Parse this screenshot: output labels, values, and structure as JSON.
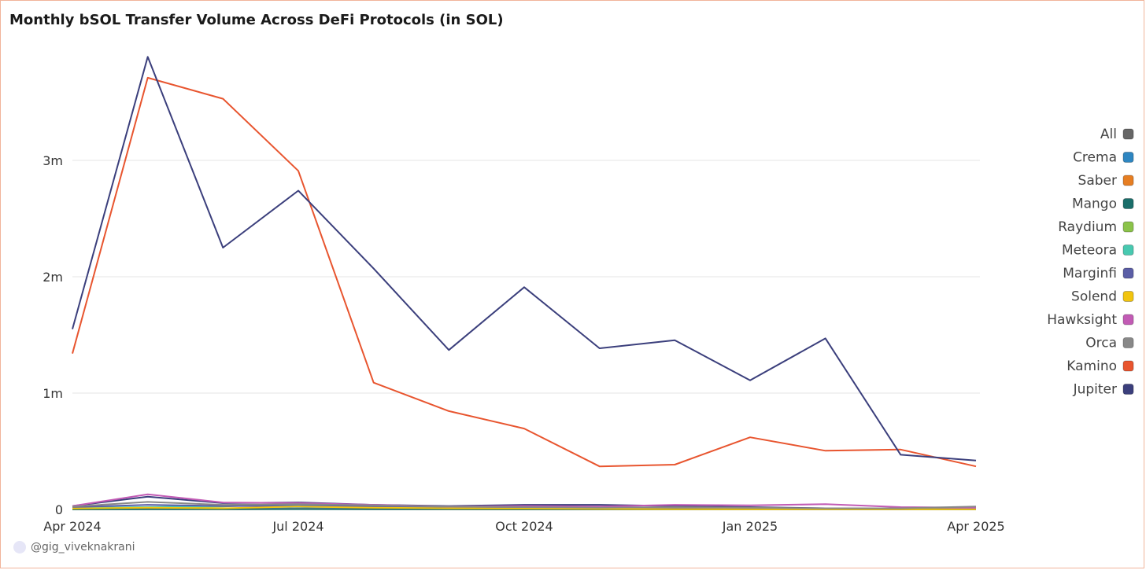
{
  "chart_data": {
    "type": "line",
    "title": "Monthly bSOL Transfer Volume Across DeFi Protocols (in SOL)",
    "x": [
      "2024-04",
      "2024-05",
      "2024-06",
      "2024-07",
      "2024-08",
      "2024-09",
      "2024-10",
      "2024-11",
      "2024-12",
      "2025-01",
      "2025-02",
      "2025-03",
      "2025-04"
    ],
    "x_ticks": [
      {
        "x": "2024-04",
        "label": "Apr 2024"
      },
      {
        "x": "2024-07",
        "label": "Jul 2024"
      },
      {
        "x": "2024-10",
        "label": "Oct 2024"
      },
      {
        "x": "2025-01",
        "label": "Jan 2025"
      },
      {
        "x": "2025-04",
        "label": "Apr 2025"
      }
    ],
    "y_ticks": [
      {
        "value": 0,
        "label": "0"
      },
      {
        "value": 1000000,
        "label": "1m"
      },
      {
        "value": 2000000,
        "label": "2m"
      },
      {
        "value": 3000000,
        "label": "3m"
      }
    ],
    "ylim": [
      0,
      4000000
    ],
    "grid": true,
    "legend_position": "right",
    "series": [
      {
        "name": "All",
        "color": "#666666",
        "values": [
          null,
          null,
          null,
          null,
          null,
          null,
          null,
          null,
          null,
          null,
          null,
          null,
          null
        ]
      },
      {
        "name": "Crema",
        "color": "#2e86c1",
        "values": [
          5000,
          8000,
          6000,
          10000,
          8000,
          5000,
          4000,
          3000,
          2000,
          1000,
          1000,
          1000,
          1000
        ]
      },
      {
        "name": "Saber",
        "color": "#e67e22",
        "values": [
          2000,
          3000,
          2000,
          4000,
          3000,
          2000,
          2000,
          2000,
          2000,
          1000,
          1000,
          1000,
          1000
        ]
      },
      {
        "name": "Mango",
        "color": "#1a6e6a",
        "values": [
          1000,
          2000,
          2000,
          3000,
          2000,
          2000,
          1000,
          1000,
          1000,
          1000,
          1000,
          1000,
          1000
        ]
      },
      {
        "name": "Raydium",
        "color": "#8bc34a",
        "values": [
          10000,
          20000,
          25000,
          50000,
          30000,
          15000,
          10000,
          10000,
          8000,
          6000,
          5000,
          5000,
          5000
        ]
      },
      {
        "name": "Meteora",
        "color": "#48c9b0",
        "values": [
          15000,
          20000,
          30000,
          40000,
          35000,
          20000,
          15000,
          20000,
          15000,
          10000,
          8000,
          8000,
          10000
        ]
      },
      {
        "name": "Marginfi",
        "color": "#5b5ea6",
        "values": [
          20000,
          40000,
          30000,
          30000,
          25000,
          20000,
          20000,
          20000,
          15000,
          10000,
          8000,
          8000,
          8000
        ]
      },
      {
        "name": "Solend",
        "color": "#f1c40f",
        "values": [
          8000,
          15000,
          10000,
          25000,
          15000,
          10000,
          8000,
          5000,
          3000,
          2000,
          2000,
          2000,
          2000
        ]
      },
      {
        "name": "Hawksight",
        "color": "#c25bb5",
        "values": [
          30000,
          130000,
          60000,
          55000,
          40000,
          25000,
          30000,
          25000,
          40000,
          35000,
          45000,
          20000,
          15000
        ]
      },
      {
        "name": "Orca",
        "color": "#888888",
        "values": [
          25000,
          65000,
          40000,
          45000,
          35000,
          25000,
          20000,
          15000,
          20000,
          15000,
          10000,
          10000,
          25000
        ]
      },
      {
        "name": "Kamino",
        "color": "#e8552f",
        "values": [
          1340000,
          3710000,
          3530000,
          2910000,
          1090000,
          845000,
          695000,
          370000,
          385000,
          620000,
          505000,
          515000,
          370000
        ]
      },
      {
        "name": "Jupiter",
        "color": "#3b3f7c",
        "values": [
          1550000,
          3890000,
          2250000,
          2740000,
          2070000,
          1370000,
          1910000,
          1385000,
          1455000,
          1110000,
          1470000,
          470000,
          420000
        ]
      }
    ],
    "extra_lines": [
      {
        "color": "#3b3f7c",
        "values": [
          30000,
          110000,
          55000,
          60000,
          40000,
          30000,
          40000,
          40000,
          30000,
          20000,
          10000,
          8000,
          10000
        ]
      }
    ]
  },
  "watermark": {
    "handle": "@gig_viveknakrani"
  }
}
